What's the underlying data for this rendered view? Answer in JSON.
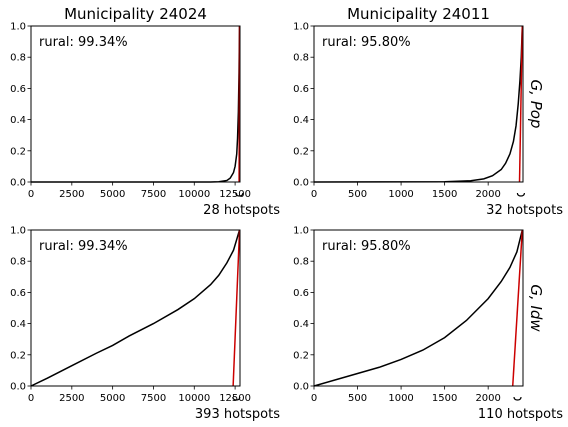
{
  "row_labels": [
    "G, Pop",
    "G, Idw"
  ],
  "colors": {
    "curve": "#000000",
    "line": "#cc0000",
    "axis": "#000000"
  },
  "chart_data": [
    {
      "type": "line",
      "title": "Municipality 24024",
      "annotation": "rural: 99.34%",
      "hotspots_label": "28 hotspots",
      "xlim": [
        0,
        12800
      ],
      "ylim": [
        0,
        1
      ],
      "x_ticks": [
        0,
        2500,
        5000,
        7500,
        10000,
        12500
      ],
      "y_ticks": [
        0.0,
        0.2,
        0.4,
        0.6,
        0.8,
        1.0
      ],
      "y_tick_labels": true,
      "curve": {
        "x": [
          0,
          11000,
          11500,
          12000,
          12200,
          12400,
          12500,
          12600,
          12650,
          12700,
          12740,
          12772
        ],
        "y": [
          0,
          0.0,
          0.002,
          0.01,
          0.025,
          0.06,
          0.1,
          0.18,
          0.28,
          0.45,
          0.7,
          1.0
        ]
      },
      "red_line": {
        "x": [
          12744,
          12772
        ],
        "y": [
          0,
          1
        ]
      },
      "bracket": {
        "x": 12760
      }
    },
    {
      "type": "line",
      "title": "Municipality 24011",
      "annotation": "rural: 95.80%",
      "hotspots_label": "32 hotspots",
      "xlim": [
        0,
        2400
      ],
      "ylim": [
        0,
        1
      ],
      "x_ticks": [
        0,
        500,
        1000,
        1500,
        2000
      ],
      "y_ticks": [
        0.0,
        0.2,
        0.4,
        0.6,
        0.8,
        1.0
      ],
      "y_tick_labels": true,
      "curve": {
        "x": [
          0,
          1500,
          1800,
          1950,
          2050,
          2150,
          2200,
          2250,
          2290,
          2320,
          2345,
          2365,
          2380,
          2392
        ],
        "y": [
          0,
          0.002,
          0.008,
          0.02,
          0.04,
          0.08,
          0.12,
          0.18,
          0.26,
          0.36,
          0.5,
          0.65,
          0.8,
          1.0
        ]
      },
      "red_line": {
        "x": [
          2360,
          2392
        ],
        "y": [
          0,
          1
        ]
      },
      "bracket": {
        "x": 2376
      }
    },
    {
      "type": "line",
      "title": "",
      "annotation": "rural: 99.34%",
      "hotspots_label": "393 hotspots",
      "xlim": [
        0,
        12800
      ],
      "ylim": [
        0,
        1
      ],
      "x_ticks": [
        0,
        2500,
        5000,
        7500,
        10000,
        12500
      ],
      "y_ticks": [
        0.0,
        0.2,
        0.4,
        0.6,
        0.8,
        1.0
      ],
      "y_tick_labels": true,
      "curve": {
        "x": [
          0,
          1000,
          2500,
          4000,
          5000,
          6000,
          7500,
          9000,
          10000,
          11000,
          11500,
          12000,
          12400,
          12772
        ],
        "y": [
          0,
          0.05,
          0.13,
          0.21,
          0.26,
          0.32,
          0.4,
          0.49,
          0.56,
          0.65,
          0.71,
          0.79,
          0.87,
          1.0
        ]
      },
      "red_line": {
        "x": [
          12379,
          12772
        ],
        "y": [
          0,
          1
        ]
      },
      "bracket": {
        "x": 12575
      }
    },
    {
      "type": "line",
      "title": "",
      "annotation": "rural: 95.80%",
      "hotspots_label": "110 hotspots",
      "xlim": [
        0,
        2400
      ],
      "ylim": [
        0,
        1
      ],
      "x_ticks": [
        0,
        500,
        1000,
        1500,
        2000
      ],
      "y_ticks": [
        0.0,
        0.2,
        0.4,
        0.6,
        0.8,
        1.0
      ],
      "y_tick_labels": true,
      "curve": {
        "x": [
          0,
          250,
          500,
          750,
          1000,
          1250,
          1500,
          1750,
          2000,
          2150,
          2250,
          2330,
          2392
        ],
        "y": [
          0,
          0.04,
          0.08,
          0.12,
          0.17,
          0.23,
          0.31,
          0.42,
          0.56,
          0.67,
          0.76,
          0.86,
          1.0
        ]
      },
      "red_line": {
        "x": [
          2282,
          2392
        ],
        "y": [
          0,
          1
        ]
      },
      "bracket": {
        "x": 2337
      }
    }
  ]
}
